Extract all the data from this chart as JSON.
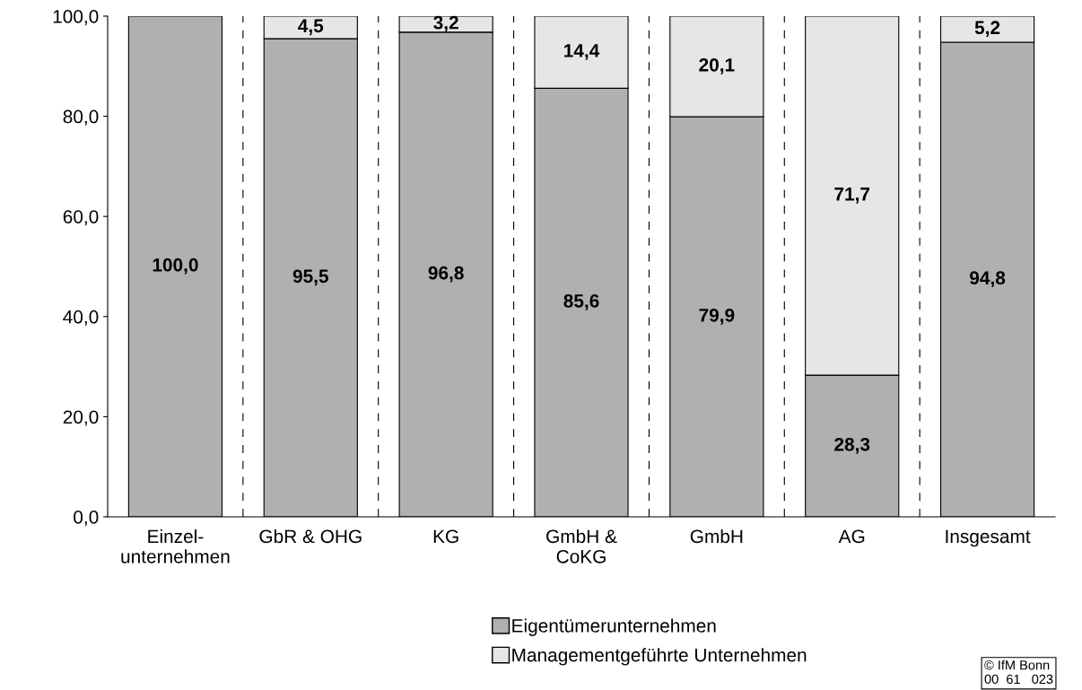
{
  "chart_data": {
    "type": "bar",
    "stacked": true,
    "categories": [
      "Einzel-\nunternehmen",
      "GbR & OHG",
      "KG",
      "GmbH &\nCoKG",
      "GmbH",
      "AG",
      "Insgesamt"
    ],
    "series": [
      {
        "name": "Eigentümerunternehmen",
        "color": "#b0b0b0",
        "values": [
          100.0,
          95.5,
          96.8,
          85.6,
          79.9,
          28.3,
          94.8
        ],
        "value_labels": [
          "100,0",
          "95,5",
          "96,8",
          "85,6",
          "79,9",
          "28,3",
          "94,8"
        ]
      },
      {
        "name": "Managementgeführte Unternehmen",
        "color": "#e6e6e6",
        "values": [
          null,
          4.5,
          3.2,
          14.4,
          20.1,
          71.7,
          5.2
        ],
        "value_labels": [
          null,
          "4,5",
          "3,2",
          "14,4",
          "20,1",
          "71,7",
          "5,2"
        ]
      }
    ],
    "ylim": [
      0,
      100
    ],
    "yticks": [
      {
        "value": 0,
        "label": "0,0"
      },
      {
        "value": 20,
        "label": "20,0"
      },
      {
        "value": 40,
        "label": "40,0"
      },
      {
        "value": 60,
        "label": "60,0"
      },
      {
        "value": 80,
        "label": "80,0"
      },
      {
        "value": 100,
        "label": "100,0"
      }
    ],
    "grid": false,
    "legend": "bottom",
    "annotations": [
      "© IfM Bonn\n00  61   023"
    ]
  }
}
